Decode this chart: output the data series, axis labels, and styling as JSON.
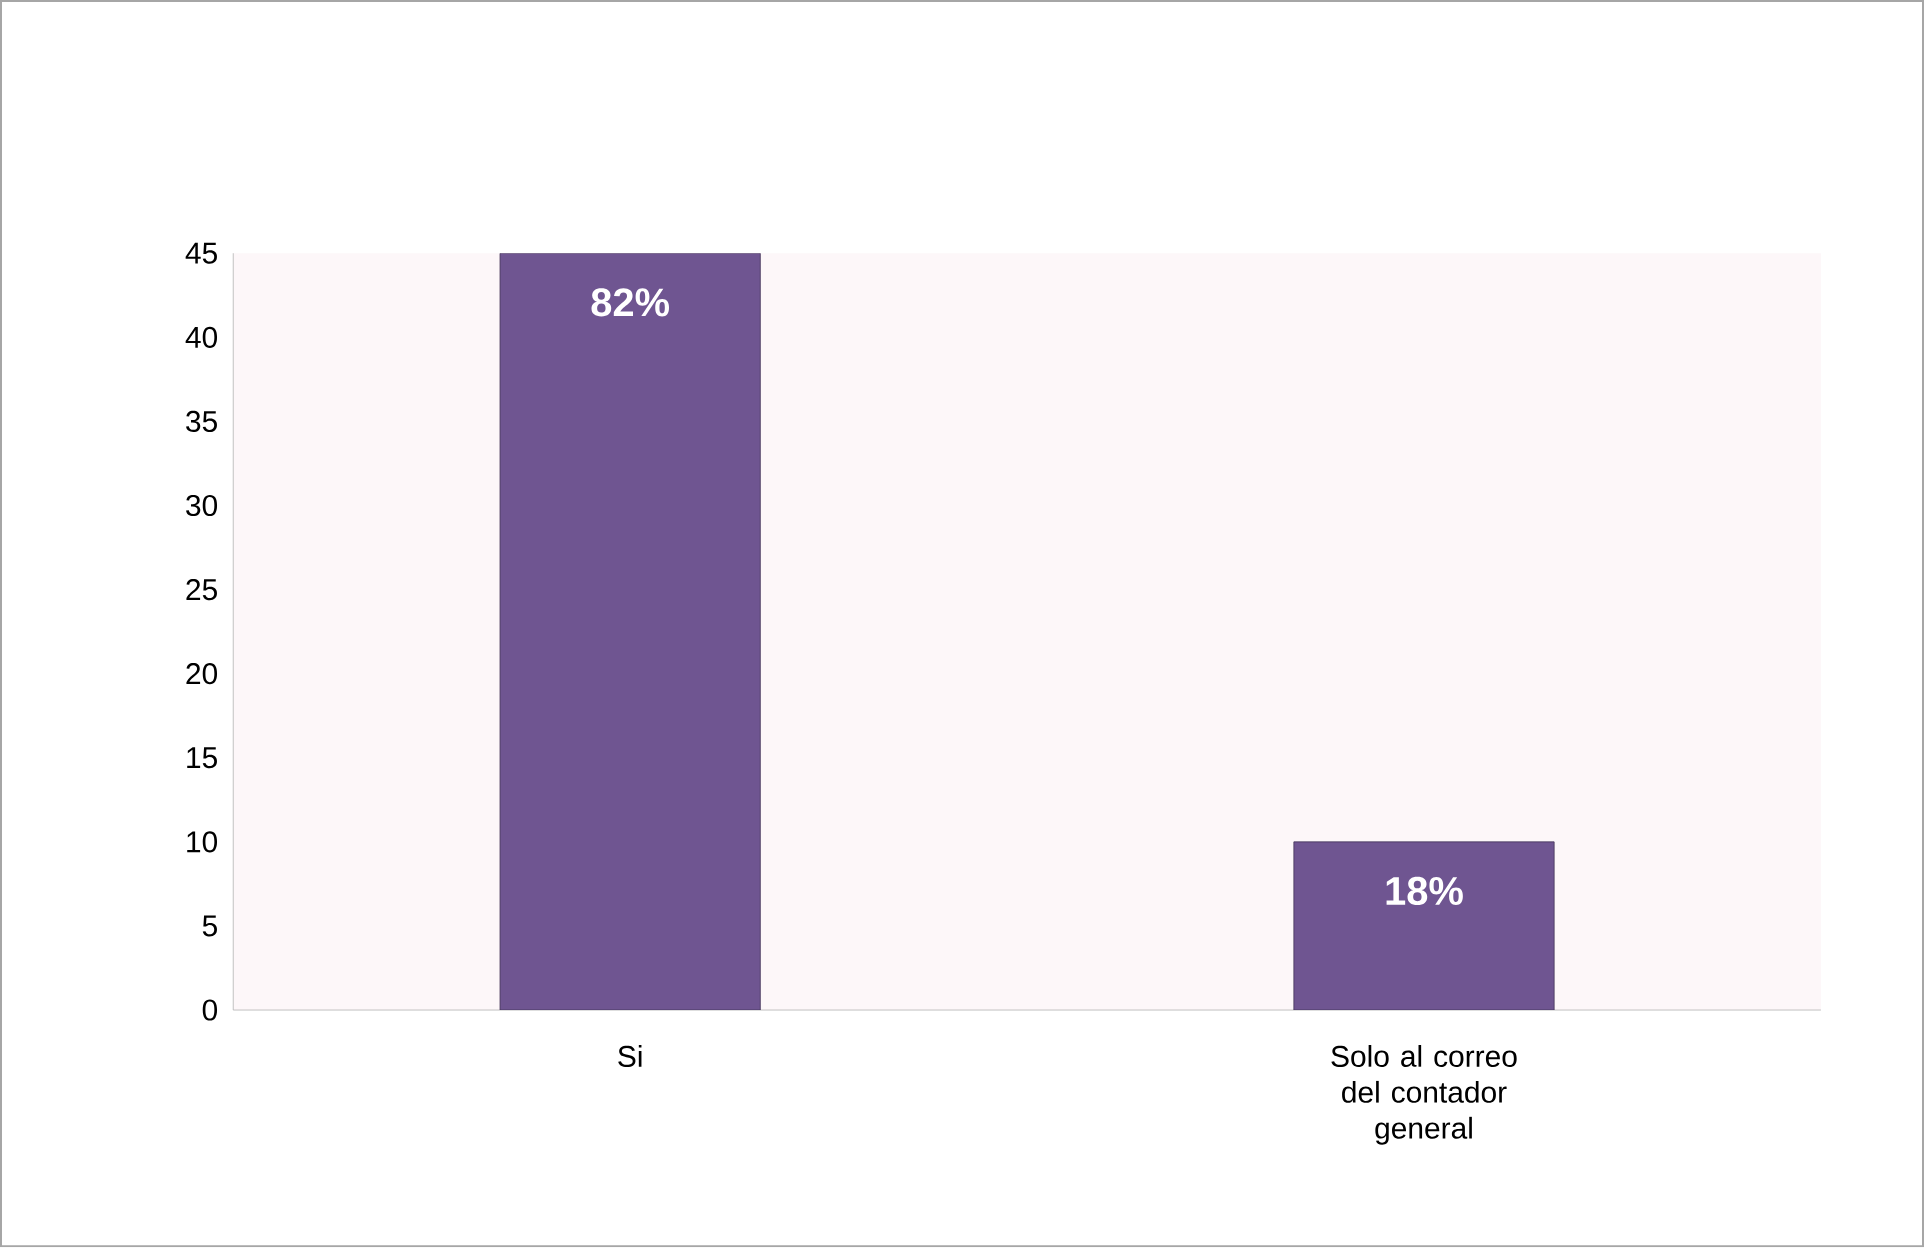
{
  "chart_data": {
    "type": "bar",
    "categories": [
      "Si",
      "Solo al correo del contador general"
    ],
    "values": [
      45,
      10
    ],
    "annotations": [
      {
        "text": "82%",
        "x": "Si",
        "y": 45
      },
      {
        "text": "18%",
        "x": "Solo al correo del contador general",
        "y": 10
      }
    ],
    "color": "#6f5591",
    "ylim": [
      0,
      45
    ],
    "yticks": [
      0,
      5,
      10,
      15,
      20,
      25,
      30,
      35,
      40,
      45
    ]
  }
}
